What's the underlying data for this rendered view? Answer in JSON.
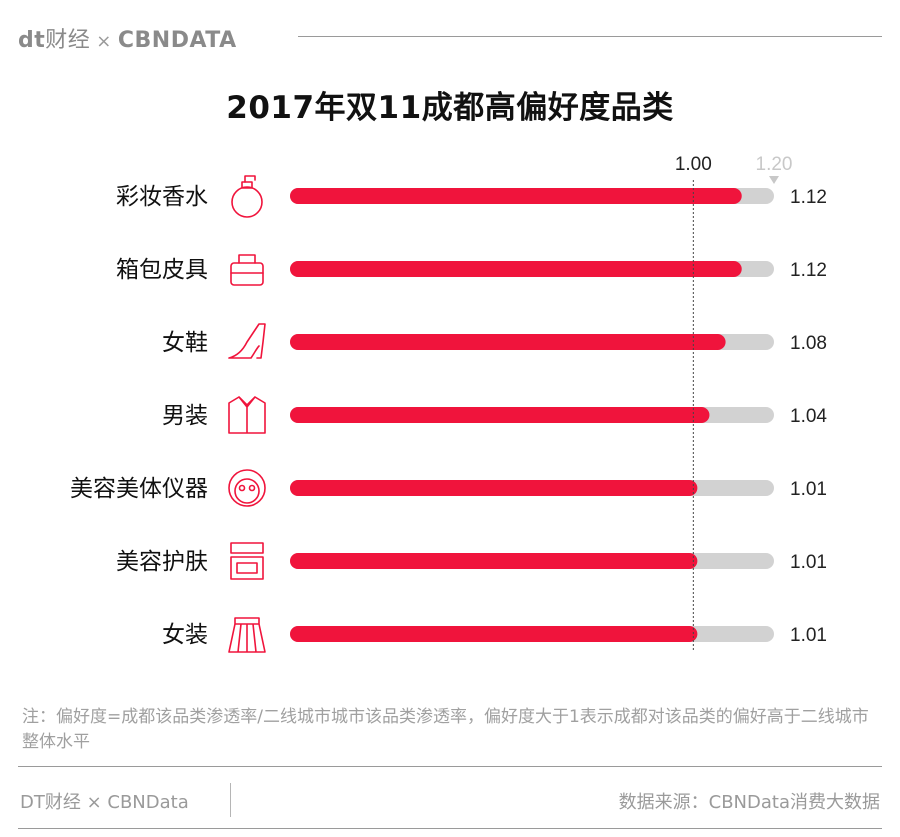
{
  "header": {
    "logo_dt": "dt",
    "logo_cn": "财经",
    "logo_sep": "×",
    "logo_cbn": "CBNDATA"
  },
  "title": "2017年双11成都高偏好度品类",
  "chart_data": {
    "type": "bar",
    "orientation": "horizontal",
    "categories": [
      "彩妆香水",
      "箱包皮具",
      "女鞋",
      "男装",
      "美容美体仪器",
      "美容护肤",
      "女装"
    ],
    "icons": [
      "perfume-bottle-icon",
      "handbag-icon",
      "high-heel-icon",
      "shirt-icon",
      "face-mask-icon",
      "makeup-palette-icon",
      "skirt-icon"
    ],
    "values": [
      1.12,
      1.12,
      1.08,
      1.04,
      1.01,
      1.01,
      1.01
    ],
    "value_labels": [
      "1.12",
      "1.12",
      "1.08",
      "1.04",
      "1.01",
      "1.01",
      "1.01"
    ],
    "xlim": [
      0,
      1.2
    ],
    "reference_line": {
      "value": 1.0,
      "label": "1.00"
    },
    "max_marker": {
      "value": 1.2,
      "label": "1.20"
    },
    "colors": {
      "bar": "#f0143c",
      "track": "#d2d2d2",
      "marker": "#c8c8c8",
      "reference": "#444444"
    }
  },
  "note": "注：偏好度=成都该品类渗透率/二线城市城市该品类渗透率，偏好度大于1表示成都对该品类的偏好高于二线城市整体水平",
  "footer": {
    "left": "DT财经 × CBNData",
    "right": "数据来源：CBNData消费大数据"
  }
}
